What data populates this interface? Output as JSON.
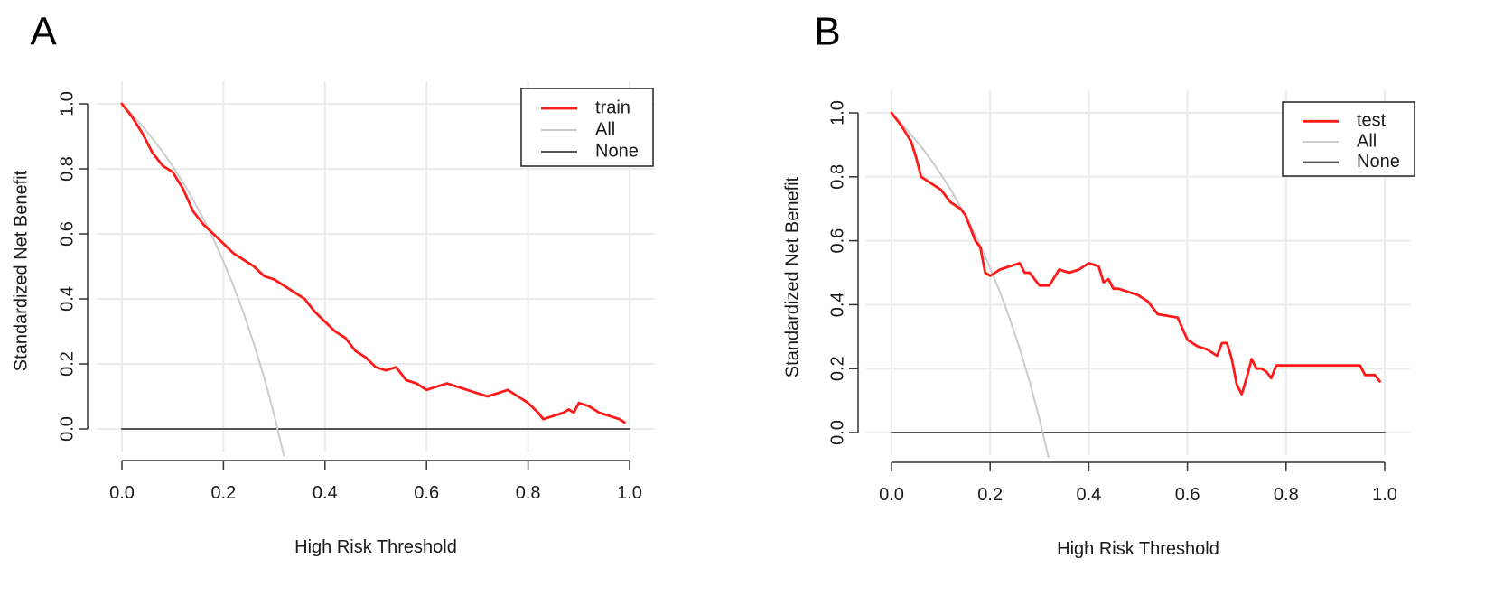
{
  "colors": {
    "model": "#ff1a1a",
    "all": "#cccccc",
    "none": "#555555",
    "grid": "#ebebeb",
    "axis": "#333333"
  },
  "chart_data": [
    {
      "panel_label": "A",
      "type": "line",
      "xlabel": "High Risk Threshold",
      "ylabel": "Standardized Net Benefit",
      "xlim": [
        0,
        1
      ],
      "ylim": [
        0,
        1
      ],
      "x_ticks": [
        "0.0",
        "0.2",
        "0.4",
        "0.6",
        "0.8",
        "1.0"
      ],
      "y_ticks": [
        "0.0",
        "0.2",
        "0.4",
        "0.6",
        "0.8",
        "1.0"
      ],
      "legend_position": "top-right",
      "legend": [
        "train",
        "All",
        "None"
      ],
      "series": [
        {
          "name": "train",
          "role": "model",
          "x": [
            0.0,
            0.02,
            0.04,
            0.06,
            0.08,
            0.1,
            0.12,
            0.14,
            0.16,
            0.18,
            0.2,
            0.22,
            0.24,
            0.26,
            0.28,
            0.3,
            0.32,
            0.34,
            0.36,
            0.38,
            0.4,
            0.42,
            0.44,
            0.46,
            0.48,
            0.5,
            0.52,
            0.54,
            0.56,
            0.58,
            0.6,
            0.62,
            0.64,
            0.66,
            0.68,
            0.7,
            0.72,
            0.74,
            0.76,
            0.78,
            0.8,
            0.82,
            0.83,
            0.85,
            0.87,
            0.88,
            0.89,
            0.9,
            0.92,
            0.94,
            0.96,
            0.98,
            0.99
          ],
          "values": [
            1.0,
            0.96,
            0.91,
            0.85,
            0.81,
            0.79,
            0.74,
            0.67,
            0.63,
            0.6,
            0.57,
            0.54,
            0.52,
            0.5,
            0.47,
            0.46,
            0.44,
            0.42,
            0.4,
            0.36,
            0.33,
            0.3,
            0.28,
            0.24,
            0.22,
            0.19,
            0.18,
            0.19,
            0.15,
            0.14,
            0.12,
            0.13,
            0.14,
            0.13,
            0.12,
            0.11,
            0.1,
            0.11,
            0.12,
            0.1,
            0.08,
            0.05,
            0.03,
            0.04,
            0.05,
            0.06,
            0.05,
            0.08,
            0.07,
            0.05,
            0.04,
            0.03,
            0.02
          ]
        },
        {
          "name": "All",
          "role": "all",
          "x": [
            0.0,
            0.02,
            0.04,
            0.06,
            0.08,
            0.1,
            0.12,
            0.14,
            0.16,
            0.18,
            0.2,
            0.22,
            0.24,
            0.26,
            0.28,
            0.3,
            0.32
          ],
          "values": [
            1.0,
            0.967,
            0.932,
            0.894,
            0.853,
            0.808,
            0.76,
            0.706,
            0.648,
            0.585,
            0.515,
            0.439,
            0.355,
            0.262,
            0.159,
            0.043,
            -0.088
          ]
        },
        {
          "name": "None",
          "role": "none",
          "x": [
            0.0,
            1.0
          ],
          "values": [
            0.0,
            0.0
          ]
        }
      ]
    },
    {
      "panel_label": "B",
      "type": "line",
      "xlabel": "High Risk Threshold",
      "ylabel": "Standardized Net Benefit",
      "xlim": [
        0,
        1
      ],
      "ylim": [
        0,
        1
      ],
      "x_ticks": [
        "0.0",
        "0.2",
        "0.4",
        "0.6",
        "0.8",
        "1.0"
      ],
      "y_ticks": [
        "0.0",
        "0.2",
        "0.4",
        "0.6",
        "0.8",
        "1.0"
      ],
      "legend_position": "top-right",
      "legend": [
        "test",
        "All",
        "None"
      ],
      "series": [
        {
          "name": "test",
          "role": "model",
          "x": [
            0.0,
            0.02,
            0.04,
            0.05,
            0.06,
            0.08,
            0.1,
            0.12,
            0.14,
            0.15,
            0.16,
            0.17,
            0.18,
            0.19,
            0.2,
            0.22,
            0.24,
            0.26,
            0.27,
            0.28,
            0.3,
            0.32,
            0.34,
            0.36,
            0.38,
            0.4,
            0.42,
            0.43,
            0.44,
            0.45,
            0.46,
            0.5,
            0.52,
            0.54,
            0.58,
            0.6,
            0.62,
            0.64,
            0.66,
            0.67,
            0.68,
            0.69,
            0.7,
            0.71,
            0.72,
            0.73,
            0.74,
            0.75,
            0.76,
            0.77,
            0.78,
            0.8,
            0.85,
            0.9,
            0.95,
            0.96,
            0.98,
            0.99
          ],
          "values": [
            1.0,
            0.96,
            0.91,
            0.86,
            0.8,
            0.78,
            0.76,
            0.72,
            0.7,
            0.68,
            0.64,
            0.6,
            0.58,
            0.5,
            0.49,
            0.51,
            0.52,
            0.53,
            0.5,
            0.5,
            0.46,
            0.46,
            0.51,
            0.5,
            0.51,
            0.53,
            0.52,
            0.47,
            0.48,
            0.45,
            0.45,
            0.43,
            0.41,
            0.37,
            0.36,
            0.29,
            0.27,
            0.26,
            0.24,
            0.28,
            0.28,
            0.23,
            0.15,
            0.12,
            0.17,
            0.23,
            0.2,
            0.2,
            0.19,
            0.17,
            0.21,
            0.21,
            0.21,
            0.21,
            0.21,
            0.18,
            0.18,
            0.16
          ]
        },
        {
          "name": "All",
          "role": "all",
          "x": [
            0.0,
            0.02,
            0.04,
            0.06,
            0.08,
            0.1,
            0.12,
            0.14,
            0.16,
            0.18,
            0.2,
            0.22,
            0.24,
            0.26,
            0.28,
            0.3,
            0.32
          ],
          "values": [
            1.0,
            0.967,
            0.932,
            0.894,
            0.853,
            0.808,
            0.76,
            0.706,
            0.648,
            0.585,
            0.515,
            0.439,
            0.355,
            0.262,
            0.159,
            0.043,
            -0.088
          ]
        },
        {
          "name": "None",
          "role": "none",
          "x": [
            0.0,
            1.0
          ],
          "values": [
            0.0,
            0.0
          ]
        }
      ]
    }
  ]
}
